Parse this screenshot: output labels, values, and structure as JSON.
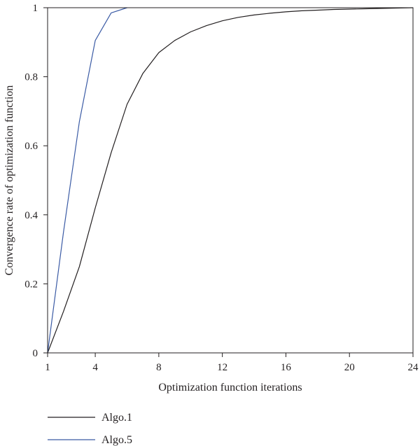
{
  "chart_data": {
    "type": "line",
    "title": "",
    "xlabel": "Optimization function iterations",
    "ylabel": "Convergence rate of optimization function",
    "xlim": [
      1,
      24
    ],
    "ylim": [
      0,
      1
    ],
    "x_ticks": [
      1,
      4,
      8,
      12,
      16,
      20,
      24
    ],
    "x_tick_labels": [
      "1",
      "4",
      "8",
      "12",
      "16",
      "20",
      "24"
    ],
    "y_ticks": [
      0,
      0.2,
      0.4,
      0.6,
      0.8,
      1
    ],
    "y_tick_labels": [
      "0",
      "0.2",
      "0.4",
      "0.6",
      "0.8",
      "1"
    ],
    "grid": false,
    "legend_position": "bottom-left",
    "series": [
      {
        "name": "Algo.1",
        "color": "#231f20",
        "x": [
          1,
          2,
          3,
          4,
          5,
          6,
          7,
          8,
          9,
          10,
          11,
          12,
          13,
          14,
          15,
          16,
          17,
          18,
          19,
          20,
          21,
          22,
          23,
          24
        ],
        "y": [
          0,
          0.12,
          0.25,
          0.42,
          0.58,
          0.72,
          0.81,
          0.87,
          0.905,
          0.93,
          0.948,
          0.962,
          0.972,
          0.979,
          0.984,
          0.988,
          0.991,
          0.993,
          0.995,
          0.996,
          0.997,
          0.998,
          0.999,
          1.0
        ]
      },
      {
        "name": "Algo.5",
        "color": "#3b5ba5",
        "x": [
          1,
          2,
          3,
          4,
          5,
          6
        ],
        "y": [
          0,
          0.35,
          0.67,
          0.905,
          0.985,
          1.0
        ]
      }
    ]
  }
}
